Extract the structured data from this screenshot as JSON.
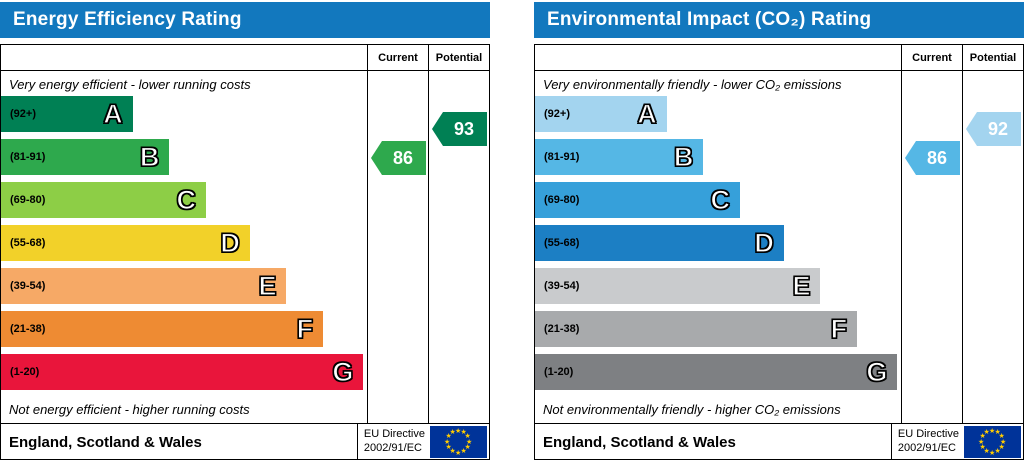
{
  "chart_data": [
    {
      "type": "bar",
      "title": "Energy Efficiency Rating",
      "header_color": "#1278be",
      "columns": [
        "Current",
        "Potential"
      ],
      "top_note": "Very energy efficient - lower running costs",
      "bottom_note": "Not energy efficient - higher running costs",
      "categories": [
        "A (92+)",
        "B (81-91)",
        "C (69-80)",
        "D (55-68)",
        "E (39-54)",
        "F (21-38)",
        "G (1-20)"
      ],
      "bands": [
        {
          "letter": "A",
          "range": "(92+)",
          "color": "#008054",
          "width_pct": 36
        },
        {
          "letter": "B",
          "range": "(81-91)",
          "color": "#2ea94d",
          "width_pct": 46
        },
        {
          "letter": "C",
          "range": "(69-80)",
          "color": "#8dce46",
          "width_pct": 56
        },
        {
          "letter": "D",
          "range": "(55-68)",
          "color": "#f2d129",
          "width_pct": 68
        },
        {
          "letter": "E",
          "range": "(39-54)",
          "color": "#f6a966",
          "width_pct": 78
        },
        {
          "letter": "F",
          "range": "(21-38)",
          "color": "#ee8b33",
          "width_pct": 88
        },
        {
          "letter": "G",
          "range": "(1-20)",
          "color": "#e9153b",
          "width_pct": 99
        }
      ],
      "current": {
        "value": 86,
        "band_index": 1,
        "color": "#2ea94d",
        "text_color": "#ffffff"
      },
      "potential": {
        "value": 93,
        "band_index": 0,
        "color": "#008054",
        "text_color": "#ffffff"
      },
      "footer": {
        "region": "England, Scotland & Wales",
        "directive_line1": "EU Directive",
        "directive_line2": "2002/91/EC"
      },
      "flag_colors": {
        "background": "#003399",
        "stars": "#ffcc00"
      }
    },
    {
      "type": "bar",
      "title": "Environmental Impact (CO₂) Rating",
      "header_color": "#1278be",
      "columns": [
        "Current",
        "Potential"
      ],
      "top_note": "Very environmentally friendly - lower CO₂ emissions",
      "bottom_note": "Not environmentally friendly - higher CO₂ emissions",
      "categories": [
        "A (92+)",
        "B (81-91)",
        "C (69-80)",
        "D (55-68)",
        "E (39-54)",
        "F (21-38)",
        "G (1-20)"
      ],
      "bands": [
        {
          "letter": "A",
          "range": "(92+)",
          "color": "#a3d4ef",
          "width_pct": 36
        },
        {
          "letter": "B",
          "range": "(81-91)",
          "color": "#55b7e5",
          "width_pct": 46
        },
        {
          "letter": "C",
          "range": "(69-80)",
          "color": "#36a0da",
          "width_pct": 56
        },
        {
          "letter": "D",
          "range": "(55-68)",
          "color": "#1c7fc4",
          "width_pct": 68
        },
        {
          "letter": "E",
          "range": "(39-54)",
          "color": "#c9cbcd",
          "width_pct": 78
        },
        {
          "letter": "F",
          "range": "(21-38)",
          "color": "#a8aaac",
          "width_pct": 88
        },
        {
          "letter": "G",
          "range": "(1-20)",
          "color": "#7e8083",
          "width_pct": 99
        }
      ],
      "current": {
        "value": 86,
        "band_index": 1,
        "color": "#55b7e5",
        "text_color": "#ffffff"
      },
      "potential": {
        "value": 92,
        "band_index": 0,
        "color": "#a3d4ef",
        "text_color": "#ffffff"
      },
      "footer": {
        "region": "England, Scotland & Wales",
        "directive_line1": "EU Directive",
        "directive_line2": "2002/91/EC"
      },
      "flag_colors": {
        "background": "#003399",
        "stars": "#ffcc00"
      }
    }
  ]
}
